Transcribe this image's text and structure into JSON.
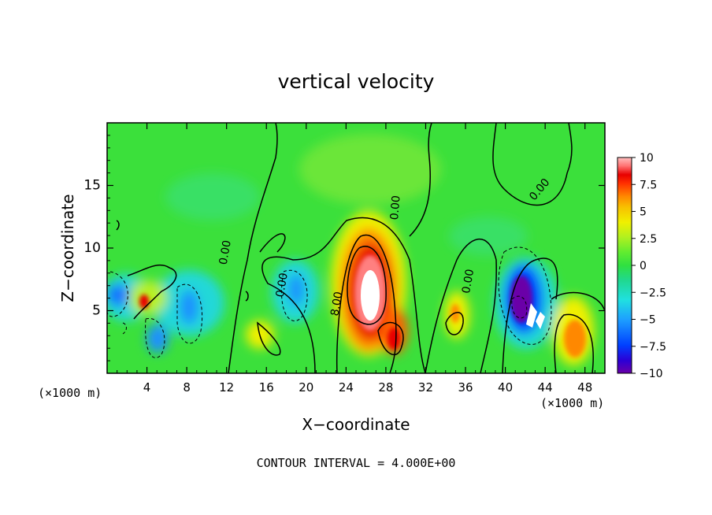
{
  "chart_data": {
    "type": "heatmap",
    "title": "vertical velocity",
    "xlabel": "X−coordinate",
    "ylabel": "Z−coordinate",
    "x_unit_left": "(×1000 m)",
    "x_unit_right": "(×1000 m)",
    "footer": "CONTOUR INTERVAL = 4.000E+00",
    "xlim": [
      0,
      50
    ],
    "ylim": [
      0,
      20
    ],
    "x_ticks": [
      4,
      8,
      12,
      16,
      20,
      24,
      28,
      32,
      36,
      40,
      44,
      48
    ],
    "x_tick_labels": [
      "4",
      "8",
      "12",
      "16",
      "20",
      "24",
      "28",
      "32",
      "36",
      "40",
      "44",
      "48"
    ],
    "y_ticks": [
      5,
      10,
      15
    ],
    "y_tick_labels": [
      "5",
      "10",
      "15"
    ],
    "colorbar": {
      "min": -10,
      "max": 10,
      "ticks": [
        10,
        7.5,
        5,
        2.5,
        0,
        -2.5,
        -5,
        -7.5,
        -10
      ],
      "tick_labels": [
        "10",
        "7.5",
        "5",
        "2.5",
        "0",
        "−2.5",
        "−5",
        "−7.5",
        "−10"
      ],
      "colors": [
        "#6a00a8",
        "#2b00d6",
        "#0040ff",
        "#1ea0ff",
        "#20e0e0",
        "#20d890",
        "#30e040",
        "#60ec30",
        "#b0f020",
        "#f0f000",
        "#f8c000",
        "#ff8800",
        "#ff3000",
        "#e80000",
        "#ff7070",
        "#ffc0c0",
        "#ffffff"
      ]
    },
    "contour_labels": [
      {
        "text": "0.00",
        "x": 12.2,
        "y": 9.6,
        "angle": -80
      },
      {
        "text": "0.00",
        "x": 17.9,
        "y": 7.0,
        "angle": -80
      },
      {
        "text": "8.00",
        "x": 23.4,
        "y": 5.5,
        "angle": -80
      },
      {
        "text": "0.00",
        "x": 29.3,
        "y": 13.2,
        "angle": -85
      },
      {
        "text": "0.00",
        "x": 36.6,
        "y": 7.3,
        "angle": -80
      },
      {
        "text": "0.00",
        "x": 43.7,
        "y": 14.5,
        "angle": -50
      }
    ],
    "features": [
      {
        "label": "updraft core",
        "x": 25.3,
        "z": 6.5,
        "w": 8.0
      },
      {
        "label": "downdraft core",
        "x": 42.5,
        "z": 5.0,
        "w": -10.0
      },
      {
        "label": "updraft",
        "x": 47.0,
        "z": 2.0,
        "w": 5.0
      },
      {
        "label": "updraft",
        "x": 3.8,
        "z": 5.5,
        "w": 7.0
      },
      {
        "label": "downdraft",
        "x": 0.8,
        "z": 6.2,
        "w": -5.0
      },
      {
        "label": "updraft",
        "x": 29.0,
        "z": 2.8,
        "w": 6.0
      }
    ]
  }
}
